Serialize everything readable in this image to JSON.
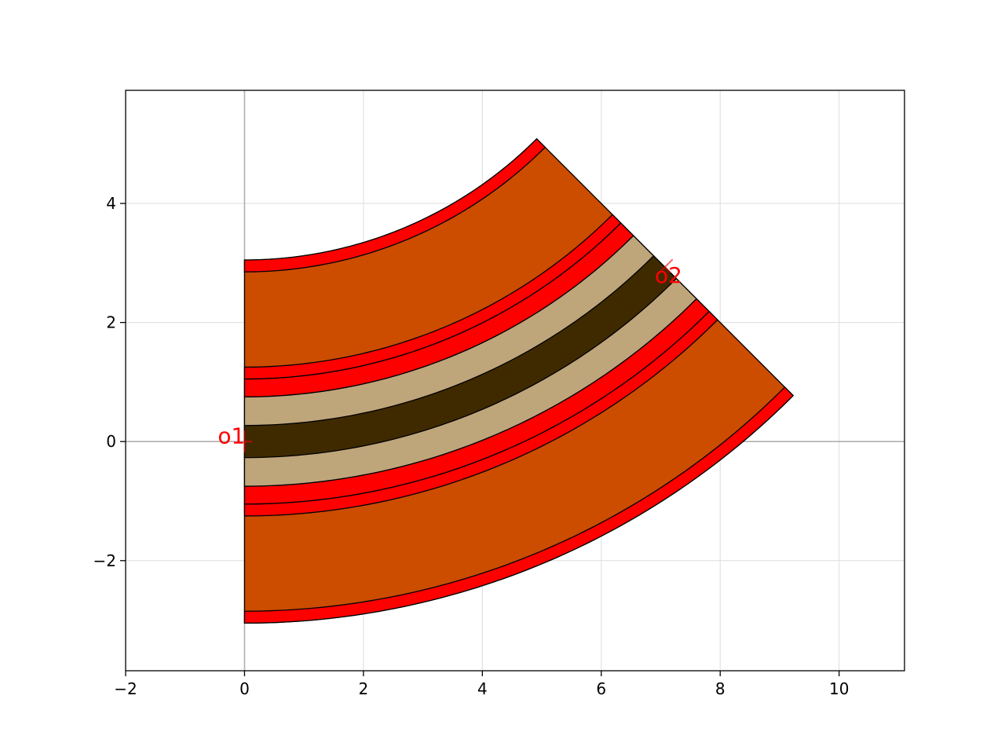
{
  "chart_data": {
    "type": "layout",
    "title": "",
    "xlabel": "",
    "ylabel": "",
    "xlim": [
      -2,
      11.1
    ],
    "ylim": [
      -3.85,
      5.9
    ],
    "x_ticks": [
      -2,
      0,
      2,
      4,
      6,
      8,
      10
    ],
    "y_ticks": [
      -2,
      0,
      2,
      4
    ],
    "x_tick_labels": [
      "−2",
      "0",
      "2",
      "4",
      "6",
      "8",
      "10"
    ],
    "y_tick_labels": [
      "−2",
      "0",
      "2",
      "4"
    ],
    "grid": true,
    "colors": {
      "cladding": "#cc4c00",
      "metal": "#ff0000",
      "slab": "#bfa57a",
      "core": "#3f2a00",
      "grid": "#dddddd",
      "axis_line": "#b0b0b0",
      "port": "#ff0000"
    },
    "bend": {
      "center": [
        0,
        10
      ],
      "radius": 10,
      "angle_start_deg": -90,
      "angle_end_deg": -45
    },
    "layers": [
      {
        "name": "cladding",
        "offset_inner": -3.05,
        "offset_outer": 3.05
      },
      {
        "name": "metal",
        "offset_inner": -3.05,
        "offset_outer": -2.85
      },
      {
        "name": "metal",
        "offset_inner": 2.85,
        "offset_outer": 3.05
      },
      {
        "name": "metal",
        "offset_inner": -1.25,
        "offset_outer": -1.05
      },
      {
        "name": "metal",
        "offset_inner": 1.05,
        "offset_outer": 1.25
      },
      {
        "name": "metal",
        "offset_inner": -1.05,
        "offset_outer": -0.75
      },
      {
        "name": "metal",
        "offset_inner": 0.75,
        "offset_outer": 1.05
      },
      {
        "name": "slab",
        "offset_inner": -0.75,
        "offset_outer": 0.75
      },
      {
        "name": "core",
        "offset_inner": -0.27,
        "offset_outer": 0.27
      }
    ],
    "ports": [
      {
        "name": "o1",
        "x": 0.0,
        "y": 0.0,
        "label_x": -0.45,
        "label_y": 0.1
      },
      {
        "name": "o2",
        "x": 7.07,
        "y": 2.93,
        "label_x": 6.9,
        "label_y": 2.8
      }
    ]
  }
}
